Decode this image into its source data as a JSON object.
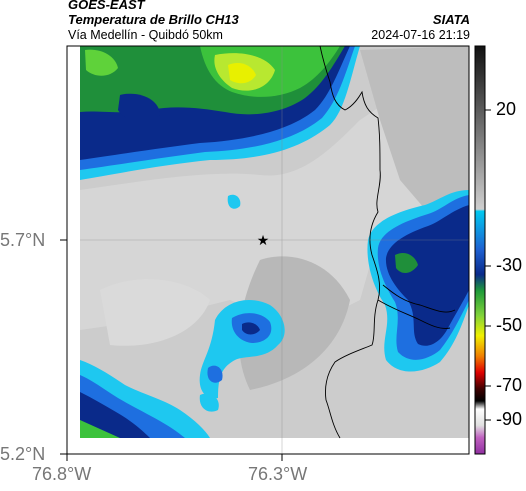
{
  "header": {
    "satellite": "GOES-EAST",
    "product": "Temperatura de Brillo CH13",
    "route": "Vía Medellín - Quibdó 50km",
    "organization": "SIATA",
    "datetime": "2024-07-16 21:19"
  },
  "axes": {
    "lat_ticks": [
      "5.7°N",
      "5.2°N"
    ],
    "lon_ticks": [
      "76.8°W",
      "76.3°W"
    ]
  },
  "colorbar": {
    "ticks": [
      "20",
      "-30",
      "-50",
      "-70",
      "-90"
    ],
    "colors": [
      "#1a1a1a",
      "#bfbfbf",
      "#00bcd4",
      "#0a2d8f",
      "#2e7d32",
      "#f5f500",
      "#e60000",
      "#000000",
      "#d080d0"
    ]
  },
  "map": {
    "marker": "star-icon",
    "colors": {
      "cold_green": "#3cc23c",
      "cold_yellow": "#e8f000",
      "navy": "#0a2a8a",
      "blue": "#1e6fe0",
      "cyan": "#1ec8f0",
      "gray": "#c9c9c9"
    }
  }
}
